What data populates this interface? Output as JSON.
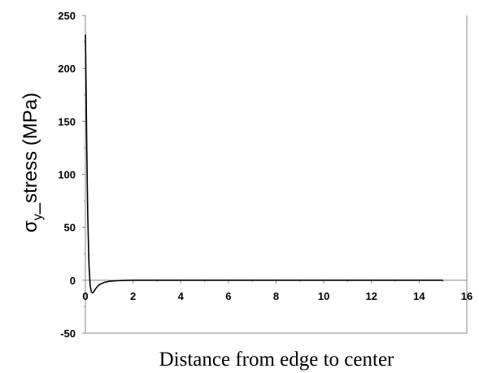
{
  "chart_data": {
    "type": "line",
    "title": "",
    "xlabel": "Distance from edge to center",
    "ylabel": "σᵧ_stress (MPa)",
    "ylabel_parts": {
      "sigma": "σ",
      "subscript": "y",
      "rest": "_stress (MPa)"
    },
    "xlim": [
      0,
      16
    ],
    "ylim": [
      -50,
      250
    ],
    "xticks": [
      0,
      2,
      4,
      6,
      8,
      10,
      12,
      14,
      16
    ],
    "yticks": [
      -50,
      0,
      50,
      100,
      150,
      200,
      250
    ],
    "xtick_labels": [
      "0",
      "2",
      "4",
      "6",
      "8",
      "10",
      "12",
      "14",
      "16"
    ],
    "ytick_labels": [
      "-50",
      "0",
      "50",
      "100",
      "150",
      "200",
      "250"
    ],
    "grid": false,
    "legend": "none",
    "series": [
      {
        "color": "#000000",
        "x": [
          0,
          0.03,
          0.06,
          0.1,
          0.15,
          0.2,
          0.25,
          0.3,
          0.35,
          0.4,
          0.5,
          0.6,
          0.8,
          1.0,
          1.3,
          1.6,
          2.0,
          3,
          5,
          8,
          12,
          15
        ],
        "y": [
          232,
          180,
          120,
          60,
          15,
          -5,
          -11,
          -12,
          -11,
          -9,
          -6,
          -4,
          -2,
          -1,
          -0.5,
          -0.2,
          0,
          0,
          0,
          0,
          0,
          0
        ]
      }
    ]
  }
}
